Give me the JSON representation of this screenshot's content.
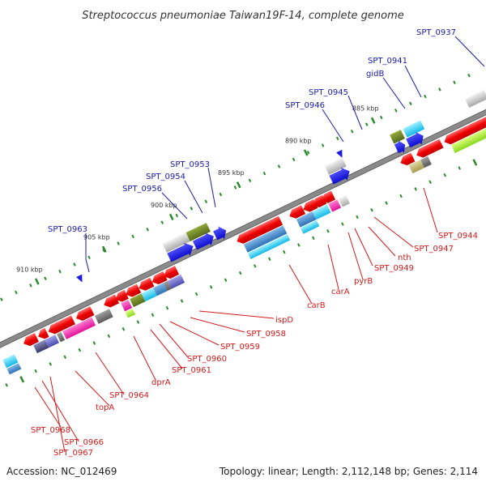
{
  "title": "Streptococcus pneumoniae Taiwan19F-14, complete genome",
  "footer": {
    "accession": "Accession: NC_012469",
    "summary": "Topology: linear; Length: 2,112,148 bp; Genes: 2,114"
  },
  "kbp_labels": [
    "885 kbp",
    "890 kbp",
    "895 kbp",
    "900 kbp",
    "905 kbp",
    "910 kbp"
  ],
  "top_labels": [
    "SPT_0937",
    "SPT_0941",
    "gidB",
    "SPT_0945",
    "SPT_0946",
    "SPT_0953",
    "SPT_0954",
    "SPT_0956",
    "SPT_0963"
  ],
  "bottom_labels": [
    "SPT_0944",
    "SPT_0947",
    "nth",
    "SPT_0949",
    "pyrB",
    "carA",
    "carB",
    "ispD",
    "SPT_0958",
    "SPT_0959",
    "SPT_0960",
    "SPT_0961",
    "dprA",
    "SPT_0964",
    "topA",
    "SPT_0968",
    "SPT_0966",
    "SPT_0967"
  ],
  "colors": {
    "top_label": "#1a1aa8",
    "bottom_label": "#d11a1a",
    "backbone": "#8c8c8c",
    "tick": "#2a8a2a",
    "strand_marker": "#1a1ae0"
  }
}
